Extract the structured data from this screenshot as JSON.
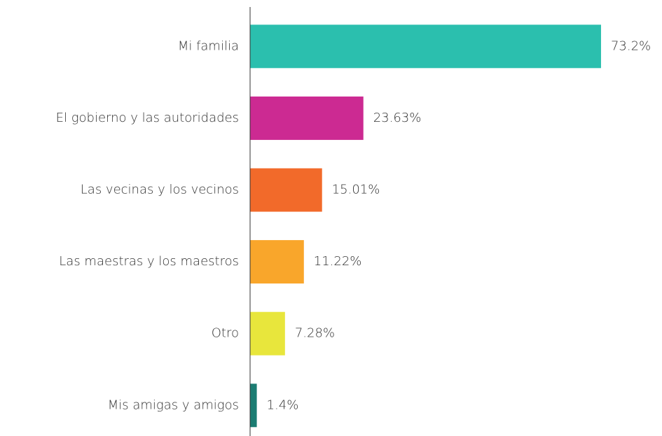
{
  "chart_data": {
    "type": "bar",
    "orientation": "horizontal",
    "categories": [
      "Mi familia",
      "El gobierno y las autoridades",
      "Las vecinas y los vecinos",
      "Las maestras y los maestros",
      "Otro",
      "Mis amigas y amigos"
    ],
    "values": [
      73.2,
      23.63,
      15.01,
      11.22,
      7.28,
      1.4
    ],
    "value_labels": [
      "73.2%",
      "23.63%",
      "15.01%",
      "11.22%",
      "7.28%",
      "1.4%"
    ],
    "colors": [
      "#2bbfae",
      "#cc2a92",
      "#f26a2a",
      "#f9a62b",
      "#e8e63c",
      "#1b7c72"
    ],
    "xlim": [
      0,
      80
    ]
  }
}
